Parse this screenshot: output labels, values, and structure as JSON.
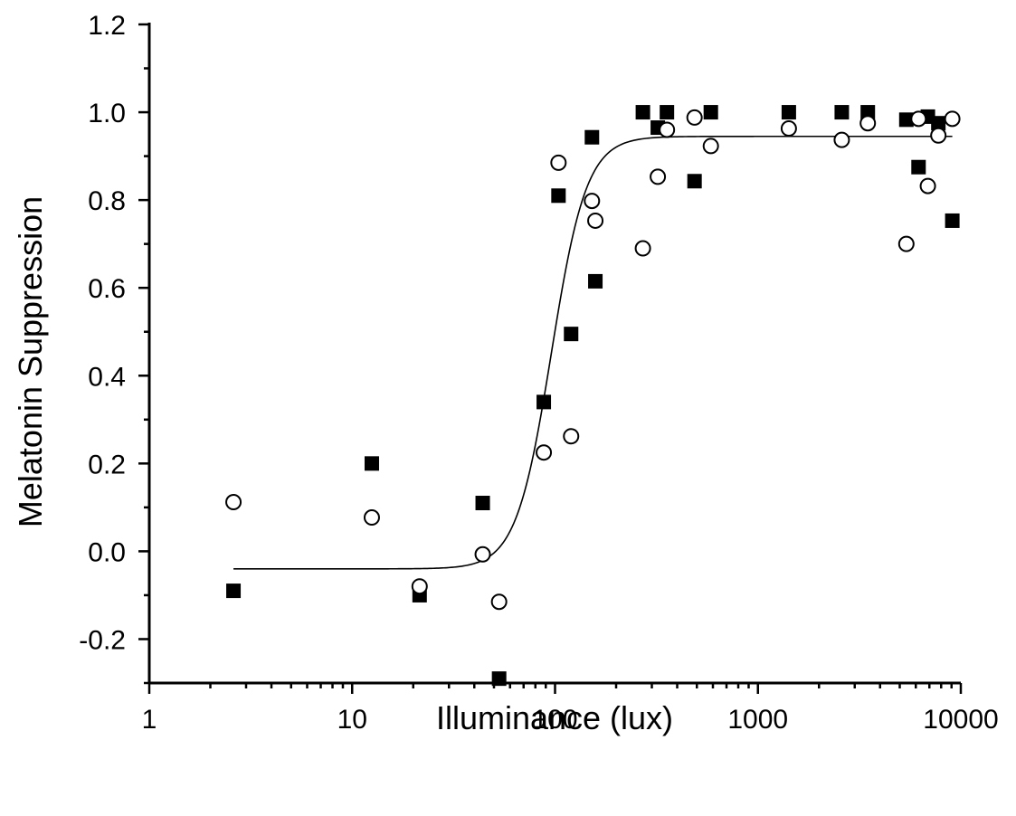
{
  "chart_data": {
    "type": "scatter",
    "title": "",
    "xlabel": "Illuminance (lux)",
    "ylabel": "Melatonin Suppression",
    "xscale": "log",
    "xlim": [
      1,
      10000
    ],
    "ylim": [
      -0.3,
      1.2
    ],
    "x_ticks": [
      1,
      10,
      100,
      1000,
      10000
    ],
    "x_tick_labels": [
      "1",
      "10",
      "100",
      "1000",
      "10000"
    ],
    "y_ticks": [
      -0.2,
      0.0,
      0.2,
      0.4,
      0.6,
      0.8,
      1.0,
      1.2
    ],
    "y_tick_labels": [
      "-0.2",
      "0.0",
      "0.2",
      "0.4",
      "0.6",
      "0.8",
      "1.0",
      "1.2"
    ],
    "grid": false,
    "legend": "none",
    "series": [
      {
        "marker": "filled-square",
        "color": "#000000",
        "points": [
          [
            2.6,
            -0.09
          ],
          [
            12.5,
            0.2
          ],
          [
            21.5,
            -0.1
          ],
          [
            44,
            0.11
          ],
          [
            53,
            -0.29
          ],
          [
            88,
            0.34
          ],
          [
            104,
            0.81
          ],
          [
            120,
            0.495
          ],
          [
            152,
            0.943
          ],
          [
            158,
            0.615
          ],
          [
            271,
            1.0
          ],
          [
            321,
            0.965
          ],
          [
            356,
            1.0
          ],
          [
            487,
            0.843
          ],
          [
            586,
            1.0
          ],
          [
            1420,
            1.0
          ],
          [
            2590,
            1.0
          ],
          [
            3480,
            1.0
          ],
          [
            5390,
            0.983
          ],
          [
            6190,
            0.875
          ],
          [
            6880,
            0.99
          ],
          [
            7750,
            0.975
          ],
          [
            9080,
            0.753
          ]
        ]
      },
      {
        "marker": "open-circle",
        "color": "#000000",
        "points": [
          [
            2.6,
            0.112
          ],
          [
            12.5,
            0.077
          ],
          [
            21.5,
            -0.08
          ],
          [
            44,
            -0.007
          ],
          [
            53,
            -0.115
          ],
          [
            88,
            0.225
          ],
          [
            104,
            0.885
          ],
          [
            120,
            0.262
          ],
          [
            152,
            0.798
          ],
          [
            158,
            0.753
          ],
          [
            271,
            0.69
          ],
          [
            321,
            0.853
          ],
          [
            356,
            0.96
          ],
          [
            487,
            0.988
          ],
          [
            586,
            0.923
          ],
          [
            1420,
            0.963
          ],
          [
            2590,
            0.937
          ],
          [
            3480,
            0.975
          ],
          [
            5390,
            0.7
          ],
          [
            6190,
            0.985
          ],
          [
            6880,
            0.832
          ],
          [
            7750,
            0.947
          ],
          [
            9080,
            0.985
          ]
        ]
      }
    ],
    "fit_curve": {
      "type": "sigmoid-log",
      "bottom": -0.04,
      "top": 0.945,
      "x50": 96,
      "slope": 5,
      "x_range": [
        2.6,
        9080
      ]
    }
  }
}
